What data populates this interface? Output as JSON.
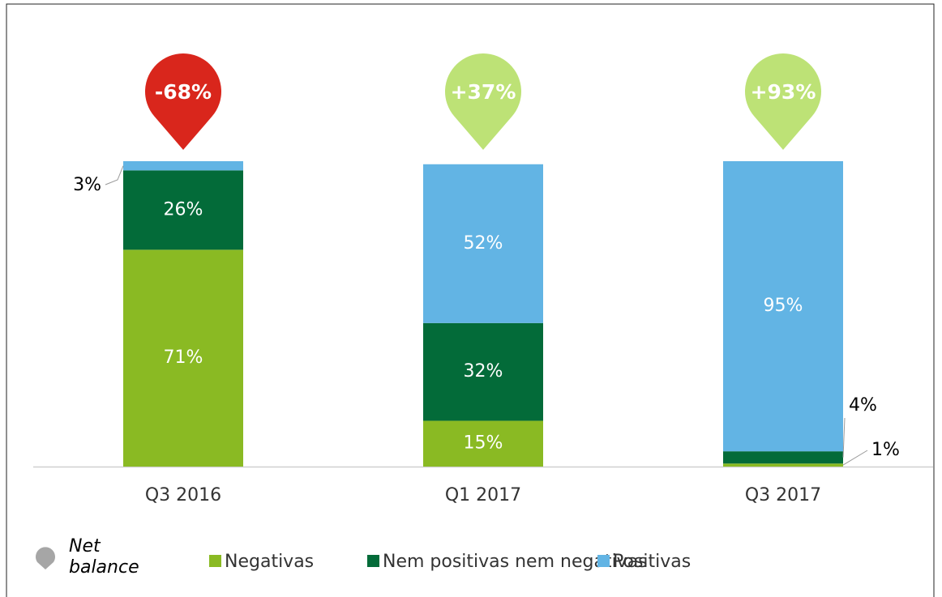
{
  "chart_data": {
    "type": "stacked_bar",
    "categories": [
      "Q3 2016",
      "Q1 2017",
      "Q3 2017"
    ],
    "series": [
      {
        "name": "Negativas",
        "color": "#8aba23",
        "values": [
          71,
          15,
          1
        ],
        "value_labels": [
          "71%",
          "15%",
          "1%"
        ]
      },
      {
        "name": "Nem positivas nem negativas",
        "color": "#036b39",
        "values": [
          26,
          32,
          4
        ],
        "value_labels": [
          "26%",
          "32%",
          "4%"
        ]
      },
      {
        "name": "Positivas",
        "color": "#62b4e4",
        "values": [
          3,
          52,
          95
        ],
        "value_labels": [
          "3%",
          "52%",
          "95%"
        ]
      }
    ],
    "net_balance": {
      "name": "Net balance",
      "color": "#a6a6a6",
      "negative_color": "#d9261c",
      "positive_color": "#bde276",
      "values": [
        -68,
        37,
        93
      ],
      "value_labels": [
        "-68%",
        "+37%",
        "+93%"
      ]
    },
    "ylim": [
      0,
      100
    ]
  }
}
